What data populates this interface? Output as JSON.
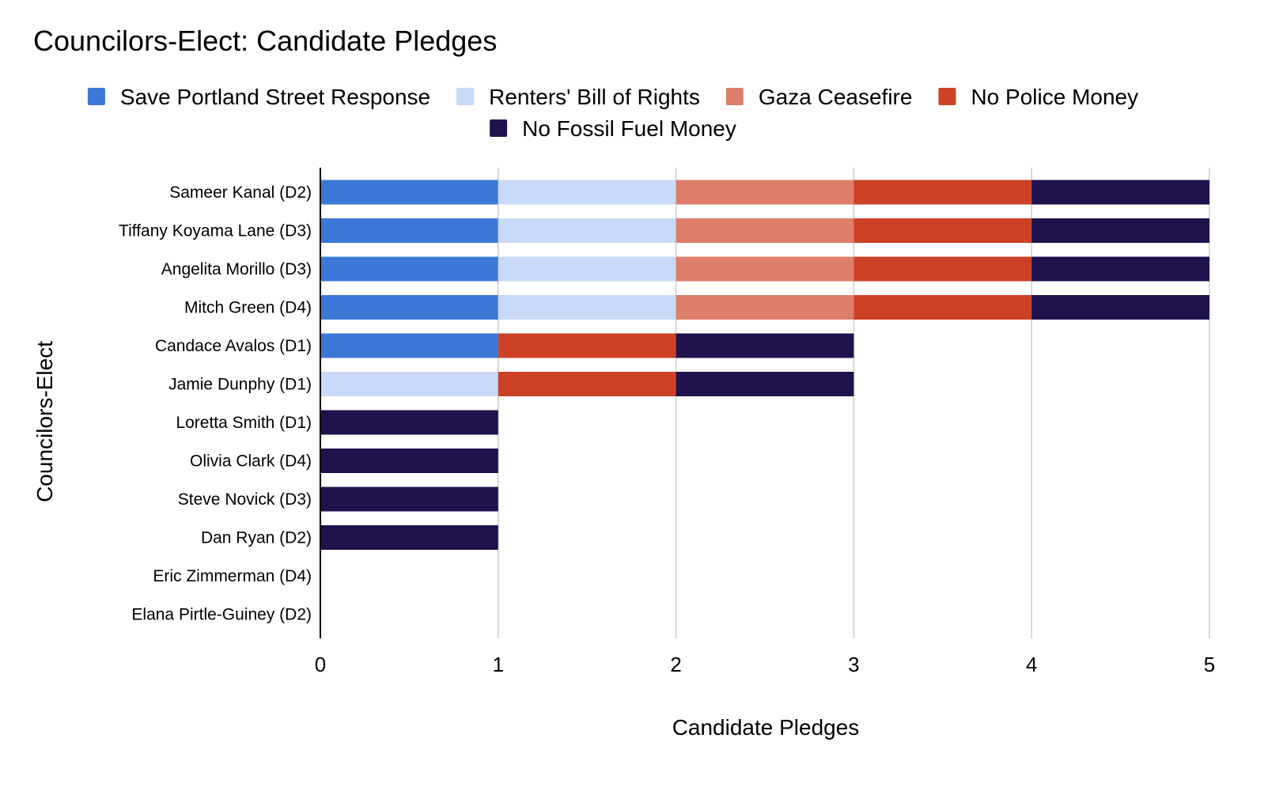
{
  "chart_data": {
    "type": "bar",
    "orientation": "horizontal",
    "stacked": true,
    "title": "Councilors-Elect: Candidate Pledges",
    "xlabel": "Candidate Pledges",
    "ylabel": "Councilors-Elect",
    "xlim": [
      0,
      5
    ],
    "xticks": [
      "0",
      "1",
      "2",
      "3",
      "4",
      "5"
    ],
    "grid": "vertical",
    "legend_position": "top",
    "categories": [
      "Sameer Kanal (D2)",
      "Tiffany Koyama Lane (D3)",
      "Angelita Morillo (D3)",
      "Mitch Green (D4)",
      "Candace Avalos (D1)",
      "Jamie Dunphy (D1)",
      "Loretta Smith (D1)",
      "Olivia Clark (D4)",
      "Steve Novick (D3)",
      "Dan Ryan (D2)",
      "Eric Zimmerman (D4)",
      "Elana Pirtle-Guiney (D2)"
    ],
    "series": [
      {
        "name": "Save Portland Street Response",
        "color": "#3c78d8",
        "values": [
          1,
          1,
          1,
          1,
          1,
          0,
          0,
          0,
          0,
          0,
          0,
          0
        ]
      },
      {
        "name": "Renters' Bill of Rights",
        "color": "#c9daf8",
        "values": [
          1,
          1,
          1,
          1,
          0,
          1,
          0,
          0,
          0,
          0,
          0,
          0
        ]
      },
      {
        "name": "Gaza Ceasefire",
        "color": "#dd7e6b",
        "values": [
          1,
          1,
          1,
          1,
          0,
          0,
          0,
          0,
          0,
          0,
          0,
          0
        ]
      },
      {
        "name": "No Police Money",
        "color": "#cc4125",
        "values": [
          1,
          1,
          1,
          1,
          1,
          1,
          0,
          0,
          0,
          0,
          0,
          0
        ]
      },
      {
        "name": "No Fossil Fuel Money",
        "color": "#20124d",
        "values": [
          1,
          1,
          1,
          1,
          1,
          1,
          1,
          1,
          1,
          1,
          0,
          0
        ]
      }
    ]
  }
}
